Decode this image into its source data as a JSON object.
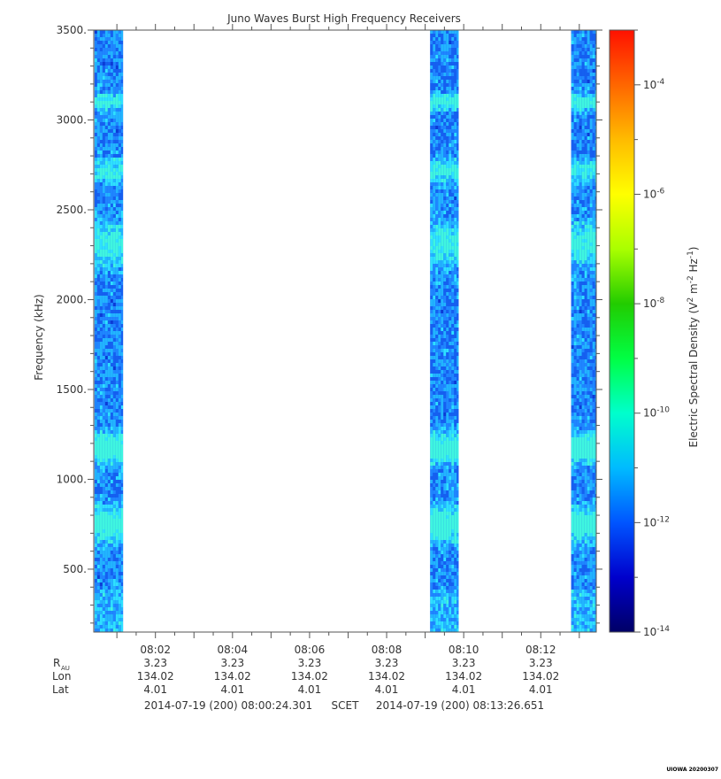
{
  "chart_data": {
    "type": "heatmap",
    "title": "Juno Waves Burst High Frequency Receivers",
    "ylabel": "Frequency (kHz)",
    "ylim": [
      150,
      3500
    ],
    "y_ticks": [
      "3500.",
      "3000.",
      "2500.",
      "2000.",
      "1500.",
      "1000.",
      "500."
    ],
    "y_tick_values": [
      3500,
      3000,
      2500,
      2000,
      1500,
      1000,
      500
    ],
    "x_tick_labels": [
      "08:02",
      "08:04",
      "08:06",
      "08:08",
      "08:10",
      "08:12"
    ],
    "x_tick_minutes": [
      2,
      4,
      6,
      8,
      10,
      12
    ],
    "x_range_minutes": [
      0.4,
      13.44
    ],
    "data_bursts": [
      {
        "start_min": 0.42,
        "end_min": 1.16
      },
      {
        "start_min": 9.13,
        "end_min": 9.87
      },
      {
        "start_min": 12.79,
        "end_min": 13.44
      }
    ],
    "emission_bands_khz": [
      {
        "center": 3110,
        "width": 40,
        "strength": 0.6
      },
      {
        "center": 2730,
        "width": 60,
        "strength": 0.5
      },
      {
        "center": 2320,
        "width": 110,
        "strength": 0.55
      },
      {
        "center": 1180,
        "width": 80,
        "strength": 0.75
      },
      {
        "center": 760,
        "width": 90,
        "strength": 0.7
      }
    ],
    "colorbar": {
      "label_main": "Electric Spectral Density (V",
      "label_close": ")",
      "unit_parts": [
        "2",
        " m",
        "-2",
        " Hz",
        "-1"
      ],
      "scale": "log",
      "range_exp": [
        -14,
        -3
      ],
      "tick_base": "10",
      "tick_exponents": [
        "-4",
        "-6",
        "-8",
        "-10",
        "-12",
        "-14"
      ],
      "tick_exponent_values": [
        -4,
        -6,
        -8,
        -10,
        -12,
        -14
      ],
      "colors": [
        "#000066",
        "#0000cc",
        "#0055ff",
        "#00bbff",
        "#00ffcc",
        "#00ff44",
        "#22cc00",
        "#aaff00",
        "#ffff00",
        "#ffbb00",
        "#ff6600",
        "#ff1100"
      ]
    },
    "ephemeris": {
      "row_labels": [
        "R",
        "Lon",
        "Lat"
      ],
      "r_subscript": "AU",
      "r_values": [
        "3.23",
        "3.23",
        "3.23",
        "3.23",
        "3.23",
        "3.23"
      ],
      "lon_values": [
        "134.02",
        "134.02",
        "134.02",
        "134.02",
        "134.02",
        "134.02"
      ],
      "lat_values": [
        "4.01",
        "4.01",
        "4.01",
        "4.01",
        "4.01",
        "4.01"
      ]
    },
    "time_range": {
      "start": "2014-07-19 (200) 08:00:24.301",
      "middle": "SCET",
      "end": "2014-07-19 (200) 08:13:26.651"
    },
    "footer_tag": "UIOWA 20200307"
  }
}
